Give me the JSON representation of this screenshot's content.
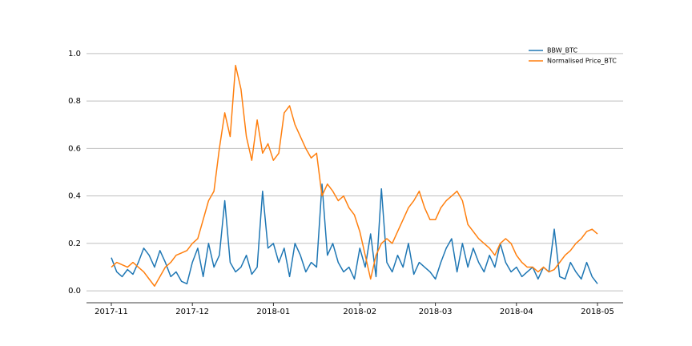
{
  "chart_data": {
    "type": "line",
    "categories": [
      "2017-11",
      null,
      null,
      null,
      null,
      null,
      null,
      null,
      null,
      null,
      null,
      null,
      null,
      null,
      null,
      "2017-12",
      null,
      null,
      null,
      null,
      null,
      null,
      null,
      null,
      null,
      null,
      null,
      null,
      null,
      null,
      "2018-01",
      null,
      null,
      null,
      null,
      null,
      null,
      null,
      null,
      null,
      null,
      null,
      null,
      null,
      null,
      null,
      "2018-02",
      null,
      null,
      null,
      null,
      null,
      null,
      null,
      null,
      null,
      null,
      null,
      null,
      null,
      "2018-03",
      null,
      null,
      null,
      null,
      null,
      null,
      null,
      null,
      null,
      null,
      null,
      null,
      null,
      null,
      "2018-04",
      null,
      null,
      null,
      null,
      null,
      null,
      null,
      null,
      null,
      null,
      null,
      null,
      null,
      null,
      "2018-05"
    ],
    "series": [
      {
        "name": "BBW_BTC",
        "color": "#1f77b4",
        "values": [
          0.14,
          0.08,
          0.06,
          0.09,
          0.07,
          0.12,
          0.18,
          0.15,
          0.1,
          0.17,
          0.12,
          0.06,
          0.08,
          0.04,
          0.03,
          0.12,
          0.18,
          0.06,
          0.2,
          0.1,
          0.15,
          0.38,
          0.12,
          0.08,
          0.1,
          0.15,
          0.07,
          0.1,
          0.42,
          0.18,
          0.2,
          0.12,
          0.18,
          0.06,
          0.2,
          0.15,
          0.08,
          0.12,
          0.1,
          0.45,
          0.15,
          0.2,
          0.12,
          0.08,
          0.1,
          0.05,
          0.18,
          0.1,
          0.24,
          0.06,
          0.43,
          0.12,
          0.08,
          0.15,
          0.1,
          0.2,
          0.07,
          0.12,
          0.1,
          0.08,
          0.05,
          0.12,
          0.18,
          0.22,
          0.08,
          0.2,
          0.1,
          0.18,
          0.12,
          0.08,
          0.15,
          0.1,
          0.2,
          0.12,
          0.08,
          0.1,
          0.06,
          0.08,
          0.1,
          0.05,
          0.1,
          0.08,
          0.26,
          0.06,
          0.05,
          0.12,
          0.08,
          0.05,
          0.12,
          0.06,
          0.03
        ]
      },
      {
        "name": "Normalised Price_BTC",
        "color": "#ff7f0e",
        "values": [
          0.1,
          0.12,
          0.11,
          0.1,
          0.12,
          0.1,
          0.08,
          0.05,
          0.02,
          0.06,
          0.1,
          0.12,
          0.15,
          0.16,
          0.17,
          0.2,
          0.22,
          0.3,
          0.38,
          0.42,
          0.6,
          0.75,
          0.65,
          0.95,
          0.85,
          0.65,
          0.55,
          0.72,
          0.58,
          0.62,
          0.55,
          0.58,
          0.75,
          0.78,
          0.7,
          0.65,
          0.6,
          0.56,
          0.58,
          0.4,
          0.45,
          0.42,
          0.38,
          0.4,
          0.35,
          0.32,
          0.25,
          0.15,
          0.05,
          0.15,
          0.2,
          0.22,
          0.2,
          0.25,
          0.3,
          0.35,
          0.38,
          0.42,
          0.35,
          0.3,
          0.3,
          0.35,
          0.38,
          0.4,
          0.42,
          0.38,
          0.28,
          0.25,
          0.22,
          0.2,
          0.18,
          0.15,
          0.2,
          0.22,
          0.2,
          0.15,
          0.12,
          0.1,
          0.1,
          0.08,
          0.1,
          0.08,
          0.09,
          0.12,
          0.15,
          0.17,
          0.2,
          0.22,
          0.25,
          0.26,
          0.24
        ]
      }
    ],
    "ylim": [
      -0.05,
      1.05
    ],
    "yticks": [
      {
        "value": 0,
        "label": "0.0"
      },
      0.2,
      0.4,
      0.6,
      0.8,
      {
        "value": 1,
        "label": "1.0"
      }
    ],
    "grid": true,
    "legend": "upper right"
  }
}
